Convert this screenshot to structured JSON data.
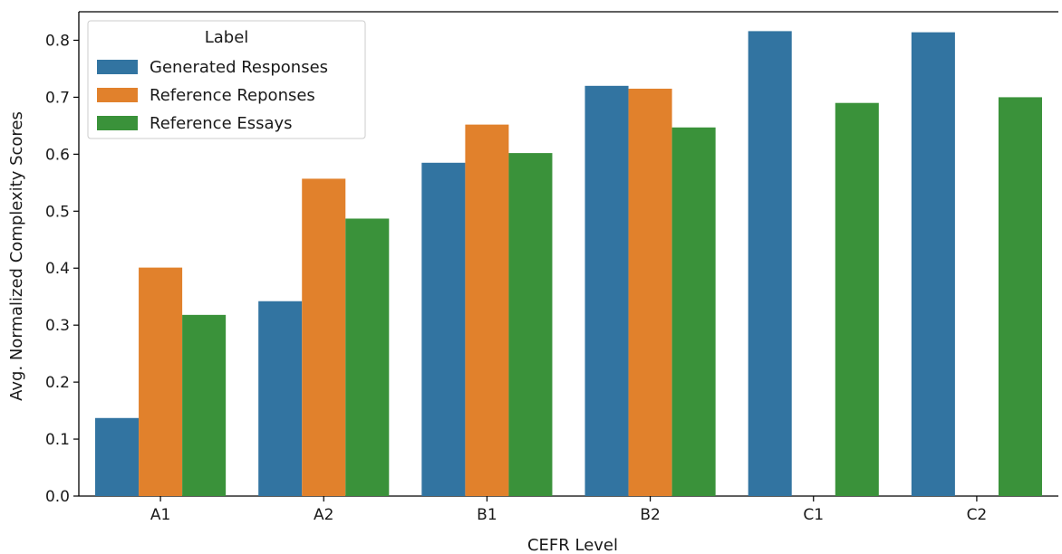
{
  "chart_data": {
    "type": "bar",
    "categories": [
      "A1",
      "A2",
      "B1",
      "B2",
      "C1",
      "C2"
    ],
    "series": [
      {
        "name": "Generated Responses",
        "color": "#3274a1",
        "values": [
          0.137,
          0.342,
          0.585,
          0.72,
          0.816,
          0.814
        ]
      },
      {
        "name": "Reference Reponses",
        "color": "#e1812c",
        "values": [
          0.401,
          0.557,
          0.652,
          0.715,
          null,
          null
        ]
      },
      {
        "name": "Reference Essays",
        "color": "#3a923a",
        "values": [
          0.318,
          0.487,
          0.602,
          0.647,
          0.69,
          0.7
        ]
      }
    ],
    "title": "",
    "xlabel": "CEFR Level",
    "ylabel": "Avg. Normalized Complexity Scores",
    "ylim": [
      0,
      0.85
    ],
    "yticks": [
      "0.0",
      "0.1",
      "0.2",
      "0.3",
      "0.4",
      "0.5",
      "0.6",
      "0.7",
      "0.8"
    ],
    "grid": false,
    "legend": {
      "title": "Label",
      "placement": "top-left"
    }
  }
}
